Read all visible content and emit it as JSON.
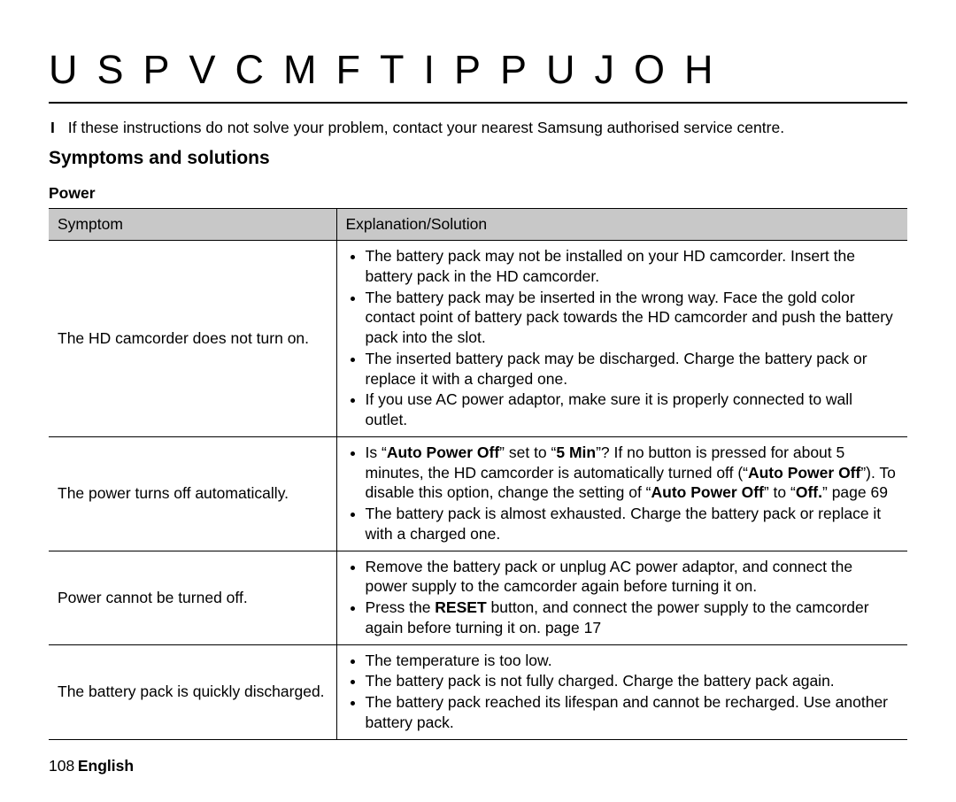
{
  "title": "USPVCMFTIPPUJOH",
  "intro_bullet": "I",
  "intro_text": "If these instructions do not solve your problem, contact your nearest Samsung authorised service centre.",
  "subhead": "Symptoms and solutions",
  "section_label": "Power",
  "table": {
    "col_symptom": "Symptom",
    "col_solution": "Explanation/Solution",
    "rows": [
      {
        "symptom": "The HD camcorder does not turn on.",
        "items": [
          "The battery pack may not be installed on your HD camcorder. Insert the battery pack in the HD camcorder.",
          "The battery pack may be inserted in the wrong way. Face the gold color contact point of battery pack towards the HD camcorder and push the battery pack into the slot.",
          "The inserted battery pack may be discharged. Charge the battery pack or replace it with a charged one.",
          "If you use AC power adaptor, make sure it is properly connected to wall outlet."
        ]
      },
      {
        "symptom": "The power turns off automatically.",
        "item1_a": "Is “",
        "item1_setting": "Auto Power Off",
        "item1_b": "” set to “",
        "item1_value": "5 Min",
        "item1_c": "”? If no button is pressed for about 5 minutes, the HD camcorder is automatically turned off (“",
        "item1_mode": "Auto Power Off",
        "item1_d": "”). To disable this option, change the setting of “",
        "item1_setting2": "Auto Power Off",
        "item1_e": "” to “",
        "item1_value2": "Off.",
        "item1_f": "” ",
        "item1_page": "page 69",
        "item2": "The battery pack is almost exhausted. Charge the battery pack or replace it with a charged one."
      },
      {
        "symptom": "Power cannot be turned off.",
        "item1": "Remove the battery pack or unplug AC power adaptor, and connect the power supply to the camcorder again before turning it on.",
        "item2_a": "Press the ",
        "item2_btn": "RESET",
        "item2_b": " button, and connect the power supply to the camcorder again before turning it on. ",
        "item2_page": "page 17"
      },
      {
        "symptom": "The battery pack is quickly discharged.",
        "items": [
          "The temperature is too low.",
          "The battery pack is not fully charged. Charge the battery pack again.",
          "The battery pack reached its lifespan and cannot be recharged. Use another battery pack."
        ]
      }
    ]
  },
  "footer": {
    "page_number": "108",
    "language": "English"
  }
}
